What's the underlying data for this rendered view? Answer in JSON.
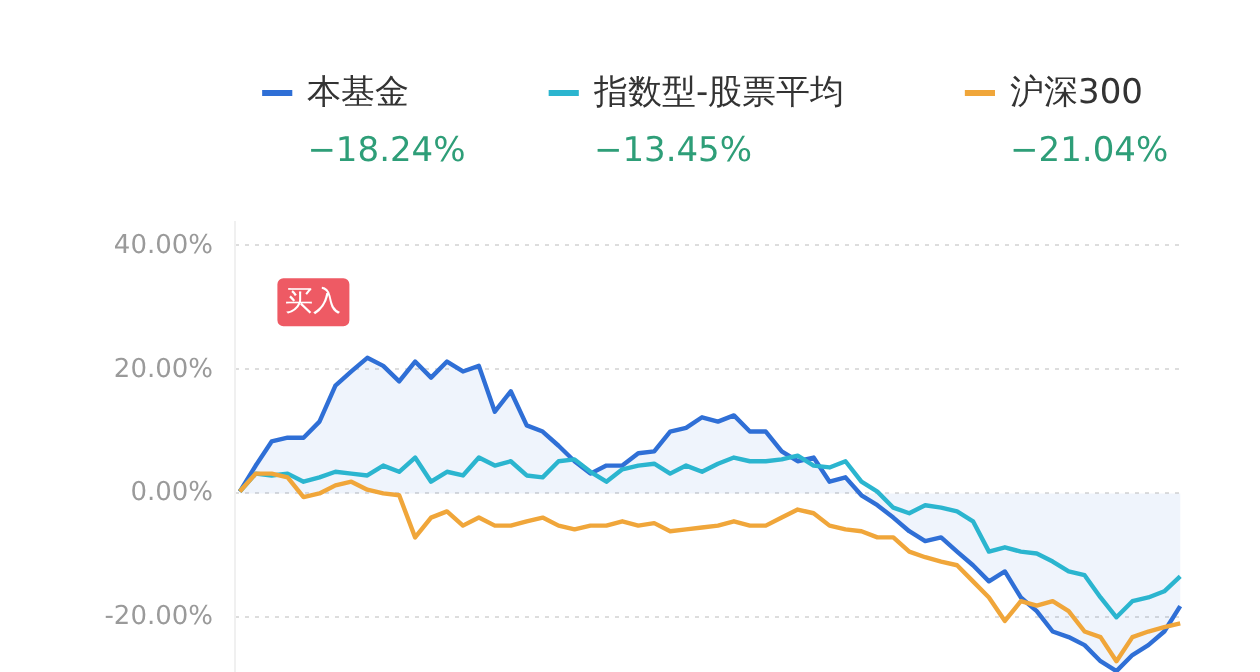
{
  "chart_data": {
    "type": "line",
    "categories": [
      null,
      null,
      null,
      null,
      null,
      null,
      null,
      null,
      null,
      null,
      null,
      null,
      null,
      null,
      null,
      null,
      null,
      null,
      null,
      null,
      null,
      null,
      null,
      null,
      null,
      null,
      null,
      null,
      null,
      null,
      null,
      null,
      null,
      null,
      null,
      null,
      null,
      null,
      null,
      null,
      null,
      null,
      null,
      null,
      null,
      null,
      null,
      null,
      null,
      null,
      null,
      null,
      null,
      null,
      null,
      null,
      null,
      null,
      null,
      null
    ],
    "series": [
      {
        "name": "本基金",
        "color": "#2f6fd6",
        "type": "area",
        "values": [
          0.3,
          4.5,
          8.4,
          9.0,
          9.0,
          11.6,
          17.4,
          19.7,
          21.9,
          20.6,
          18.1,
          21.3,
          18.7,
          21.3,
          19.7,
          20.6,
          13.2,
          16.5,
          11.0,
          10.0,
          7.7,
          5.2,
          3.2,
          4.5,
          4.5,
          6.5,
          6.8,
          10.0,
          10.6,
          12.3,
          11.6,
          12.6,
          10.0,
          10.0,
          6.8,
          5.2,
          5.8,
          1.9,
          2.6,
          -0.3,
          -1.9,
          -3.9,
          -6.1,
          -7.7,
          -7.1,
          -9.4,
          -11.6,
          -14.2,
          -12.6,
          -16.8,
          -19.0,
          -22.3,
          -23.2,
          -24.5,
          -27.1,
          -28.7,
          -26.1,
          -24.5,
          -22.3,
          -18.2
        ]
      },
      {
        "name": "指数型-股票平均",
        "color": "#2bb5cf",
        "values": [
          0.3,
          3.2,
          2.9,
          3.2,
          1.9,
          2.6,
          3.5,
          3.2,
          2.9,
          4.5,
          3.5,
          5.8,
          1.9,
          3.5,
          2.9,
          5.8,
          4.5,
          5.2,
          2.9,
          2.6,
          5.2,
          5.5,
          3.5,
          1.9,
          3.9,
          4.5,
          4.8,
          3.2,
          4.5,
          3.5,
          4.8,
          5.8,
          5.2,
          5.2,
          5.5,
          6.1,
          4.5,
          4.2,
          5.2,
          1.9,
          0.3,
          -2.3,
          -3.2,
          -1.9,
          -2.3,
          -2.9,
          -4.5,
          -9.4,
          -8.7,
          -9.4,
          -9.7,
          -11.0,
          -12.6,
          -13.2,
          -16.8,
          -20.0,
          -17.4,
          -16.8,
          -15.8,
          -13.4
        ]
      },
      {
        "name": "沪深300",
        "color": "#f0a63a",
        "values": [
          0.3,
          3.2,
          3.2,
          2.6,
          -0.6,
          0,
          1.3,
          1.9,
          0.6,
          0,
          -0.3,
          -7.1,
          -3.9,
          -2.9,
          -5.2,
          -3.9,
          -5.2,
          -5.2,
          -4.5,
          -3.9,
          -5.2,
          -5.8,
          -5.2,
          -5.2,
          -4.5,
          -5.2,
          -4.8,
          -6.1,
          -5.8,
          -5.5,
          -5.2,
          -4.5,
          -5.2,
          -5.2,
          -3.9,
          -2.6,
          -3.2,
          -5.2,
          -5.8,
          -6.1,
          -7.1,
          -7.1,
          -9.4,
          -10.3,
          -11.0,
          -11.6,
          -14.2,
          -16.8,
          -20.6,
          -17.4,
          -18.1,
          -17.4,
          -19.0,
          -22.3,
          -23.2,
          -27.1,
          -23.2,
          -22.3,
          -21.6,
          -21.0
        ]
      }
    ],
    "ylim": [
      -29,
      44
    ],
    "yticks": [
      {
        "value": 40,
        "label": "40.00%"
      },
      {
        "value": 20,
        "label": "20.00%"
      },
      {
        "value": 0,
        "label": "0.00%"
      },
      {
        "value": -20,
        "label": "-20.00%"
      }
    ],
    "grid": "y",
    "legend": "top",
    "tick_labels": "y",
    "line_style": "solid",
    "annotations": [
      "−18.24%",
      "−13.45%",
      "−21.04%",
      "买入"
    ]
  }
}
